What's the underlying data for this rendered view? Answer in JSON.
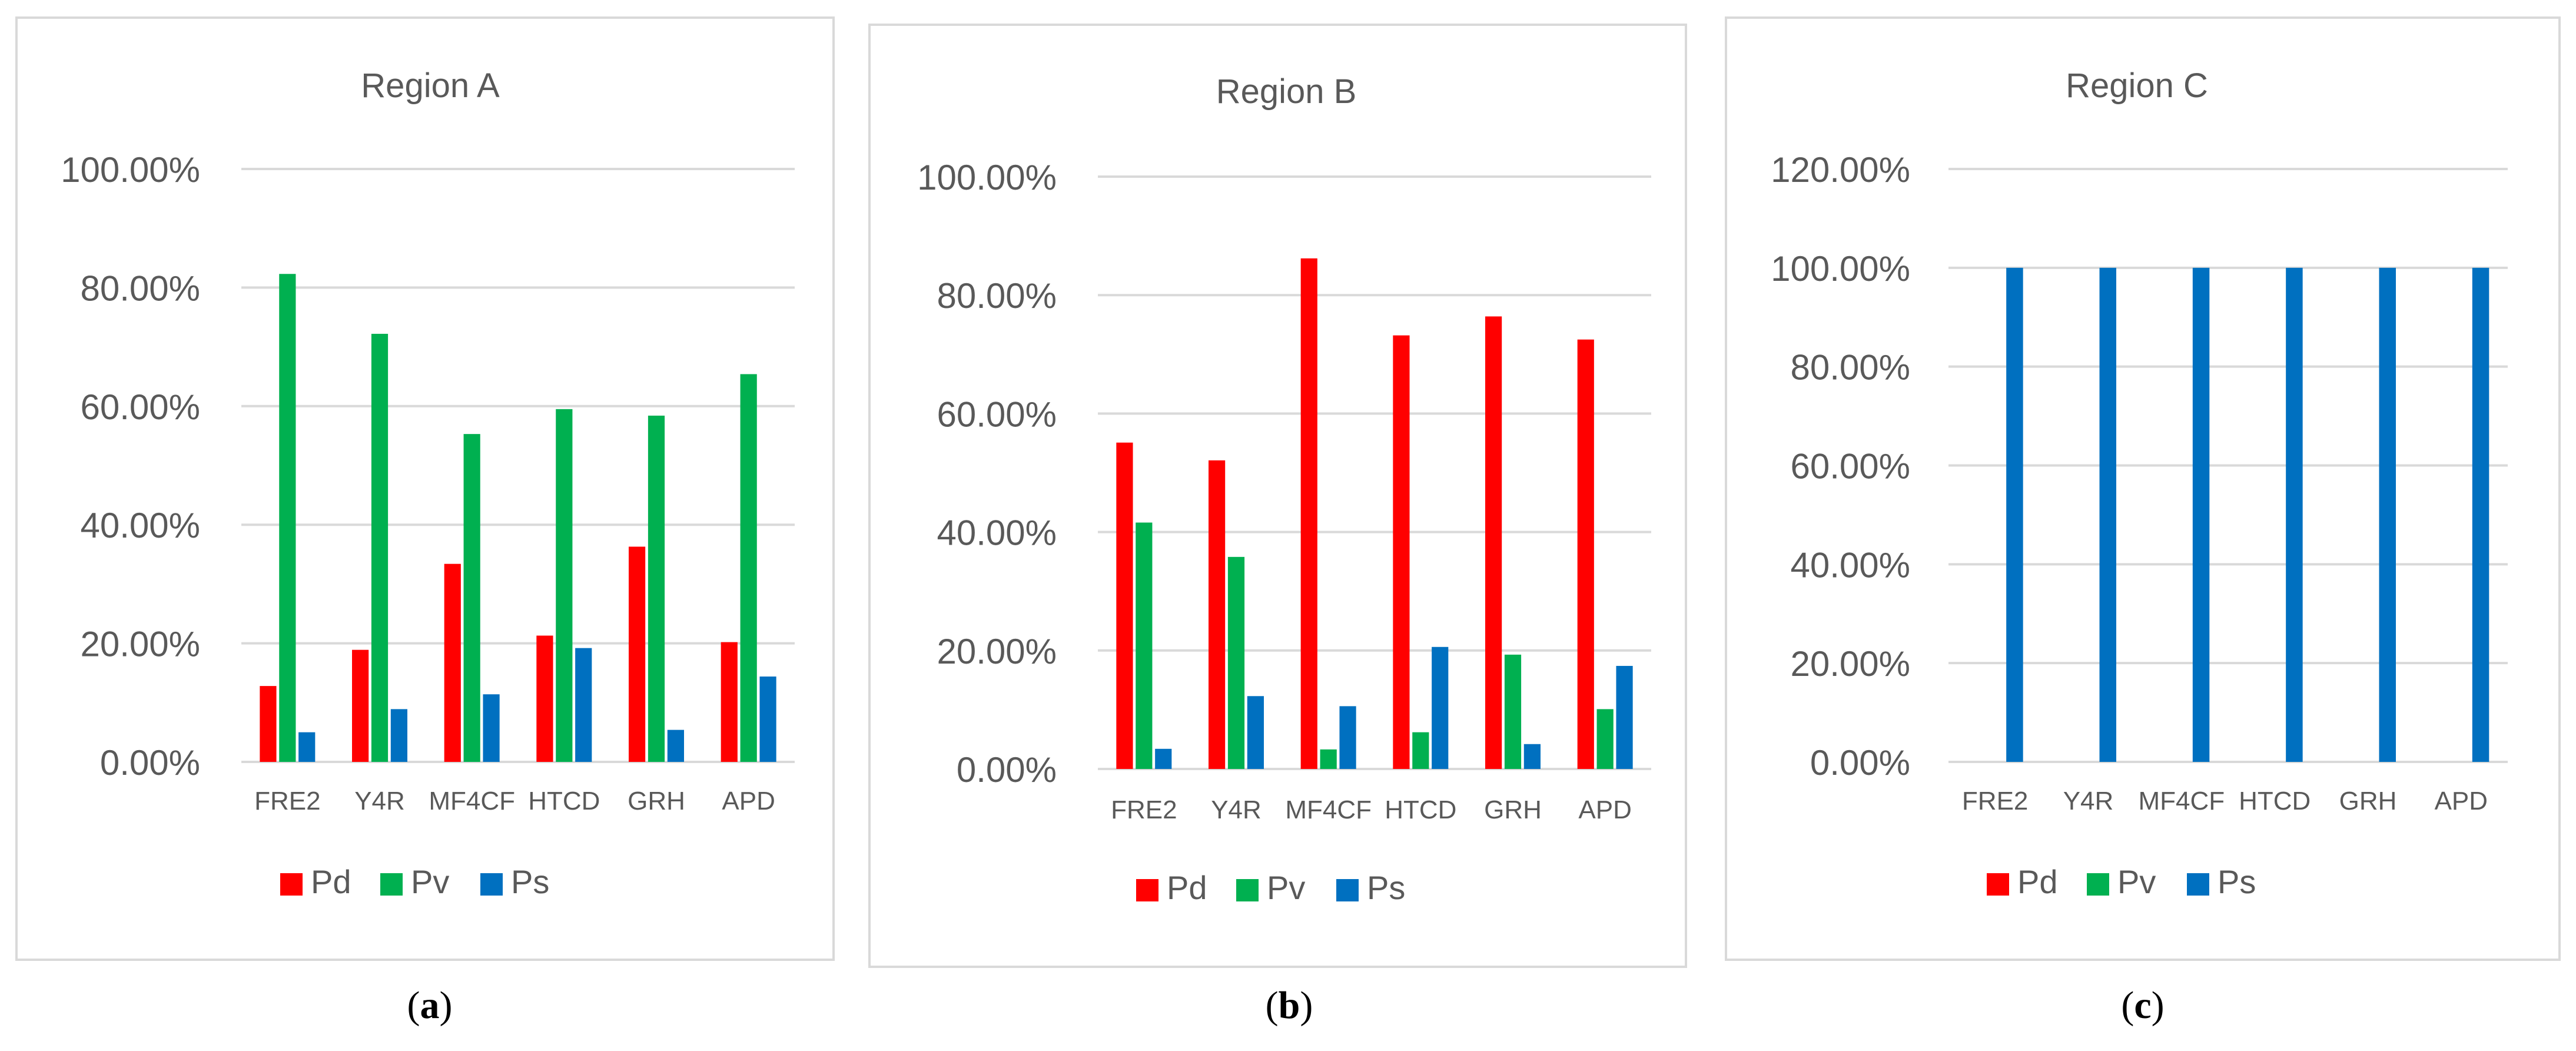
{
  "colors": {
    "Pd": "#ff0000",
    "Pv": "#00b050",
    "Ps": "#0070c0",
    "text": "#595959",
    "grid": "#d9d9d9"
  },
  "captions": [
    {
      "open": "(",
      "letter": "a",
      "close": ")"
    },
    {
      "open": "(",
      "letter": "b",
      "close": ")"
    },
    {
      "open": "(",
      "letter": "c",
      "close": ")"
    }
  ],
  "chart_data": [
    {
      "type": "bar",
      "title": "Region A",
      "categories": [
        "FRE2",
        "Y4R",
        "MF4CF",
        "HTCD",
        "GRH",
        "APD"
      ],
      "series": [
        {
          "name": "Pd",
          "values": [
            12.8,
            18.9,
            33.4,
            21.3,
            36.3,
            20.2
          ]
        },
        {
          "name": "Pv",
          "values": [
            82.3,
            72.2,
            55.3,
            59.5,
            58.4,
            65.4
          ]
        },
        {
          "name": "Ps",
          "values": [
            5.0,
            8.9,
            11.4,
            19.2,
            5.4,
            14.4
          ]
        }
      ],
      "ylim": [
        0,
        100
      ],
      "yticks": [
        0,
        20,
        40,
        60,
        80,
        100
      ],
      "ytick_labels": [
        "0.00%",
        "20.00%",
        "40.00%",
        "60.00%",
        "80.00%",
        "100.00%"
      ],
      "legend": "bottom",
      "grid": true
    },
    {
      "type": "bar",
      "title": "Region B",
      "categories": [
        "FRE2",
        "Y4R",
        "MF4CF",
        "HTCD",
        "GRH",
        "APD"
      ],
      "series": [
        {
          "name": "Pd",
          "values": [
            55.1,
            52.1,
            86.2,
            73.2,
            76.4,
            72.5
          ]
        },
        {
          "name": "Pv",
          "values": [
            41.6,
            35.8,
            3.3,
            6.2,
            19.3,
            10.1
          ]
        },
        {
          "name": "Ps",
          "values": [
            3.4,
            12.3,
            10.6,
            20.6,
            4.2,
            17.4
          ]
        }
      ],
      "ylim": [
        0,
        100
      ],
      "yticks": [
        0,
        20,
        40,
        60,
        80,
        100
      ],
      "ytick_labels": [
        "0.00%",
        "20.00%",
        "40.00%",
        "60.00%",
        "80.00%",
        "100.00%"
      ],
      "legend": "bottom",
      "grid": true
    },
    {
      "type": "bar",
      "title": "Region C",
      "categories": [
        "FRE2",
        "Y4R",
        "MF4CF",
        "HTCD",
        "GRH",
        "APD"
      ],
      "series": [
        {
          "name": "Pd",
          "values": [
            0,
            0,
            0,
            0,
            0,
            0
          ]
        },
        {
          "name": "Pv",
          "values": [
            0,
            0,
            0,
            0,
            0,
            0
          ]
        },
        {
          "name": "Ps",
          "values": [
            100,
            100,
            100,
            100,
            100,
            100
          ]
        }
      ],
      "ylim": [
        0,
        120
      ],
      "yticks": [
        0,
        20,
        40,
        60,
        80,
        100,
        120
      ],
      "ytick_labels": [
        "0.00%",
        "20.00%",
        "40.00%",
        "60.00%",
        "80.00%",
        "100.00%",
        "120.00%"
      ],
      "legend": "bottom",
      "grid": true
    }
  ]
}
